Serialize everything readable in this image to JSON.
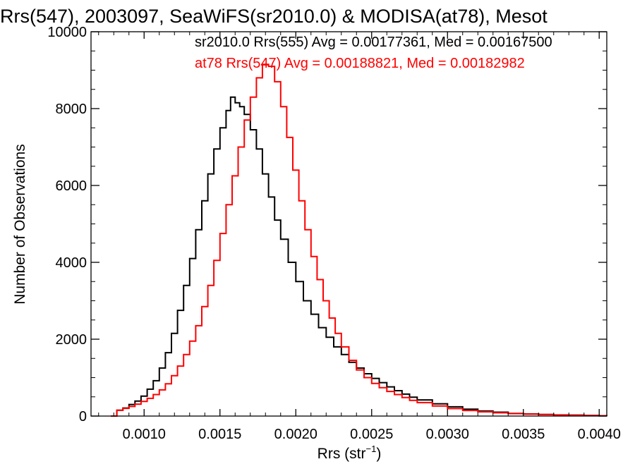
{
  "chart_data": {
    "type": "line",
    "style": "step-histogram",
    "title": "Rrs(547), 2003097, SeaWiFS(sr2010.0) & MODISA(at78), Mesot",
    "xlabel_main": "Rrs (str",
    "xlabel_sup": "−1",
    "xlabel_close": ")",
    "ylabel": "Number of Observations",
    "xlim": [
      0.00065,
      0.00405
    ],
    "ylim": [
      0,
      10000
    ],
    "x_ticks": [
      0.001,
      0.0015,
      0.002,
      0.0025,
      0.003,
      0.0035,
      0.004
    ],
    "x_tick_labels": [
      "0.0010",
      "0.0015",
      "0.0020",
      "0.0025",
      "0.0030",
      "0.0035",
      "0.0040"
    ],
    "y_ticks": [
      0,
      2000,
      4000,
      6000,
      8000,
      10000
    ],
    "y_tick_labels": [
      "0",
      "2000",
      "4000",
      "6000",
      "8000",
      "10000"
    ],
    "annotations": [
      {
        "text": "sr2010.0 Rrs(555) Avg = 0.00177361, Med = 0.00167500",
        "color": "#000000"
      },
      {
        "text": "at78 Rrs(547) Avg = 0.00188821, Med = 0.00182982",
        "color": "#ff0000"
      }
    ],
    "series": [
      {
        "color": "#000000",
        "points": [
          [
            0.00078,
            0
          ],
          [
            0.00082,
            150
          ],
          [
            0.00086,
            210
          ],
          [
            0.0009,
            300
          ],
          [
            0.00094,
            390
          ],
          [
            0.00098,
            520
          ],
          [
            0.00102,
            700
          ],
          [
            0.00106,
            920
          ],
          [
            0.0011,
            1250
          ],
          [
            0.00114,
            1650
          ],
          [
            0.00118,
            2150
          ],
          [
            0.00122,
            2750
          ],
          [
            0.00126,
            3400
          ],
          [
            0.0013,
            4100
          ],
          [
            0.00134,
            4850
          ],
          [
            0.00138,
            5600
          ],
          [
            0.00142,
            6300
          ],
          [
            0.00146,
            6950
          ],
          [
            0.0015,
            7500
          ],
          [
            0.00154,
            7950
          ],
          [
            0.00157,
            8300
          ],
          [
            0.0016,
            8150
          ],
          [
            0.00163,
            8050
          ],
          [
            0.00166,
            7850
          ],
          [
            0.0017,
            7450
          ],
          [
            0.00174,
            6950
          ],
          [
            0.00178,
            6300
          ],
          [
            0.00182,
            5700
          ],
          [
            0.00186,
            5100
          ],
          [
            0.0019,
            4600
          ],
          [
            0.00195,
            4000
          ],
          [
            0.002,
            3500
          ],
          [
            0.00205,
            3000
          ],
          [
            0.0021,
            2650
          ],
          [
            0.00215,
            2300
          ],
          [
            0.0022,
            2050
          ],
          [
            0.00225,
            1800
          ],
          [
            0.0023,
            1600
          ],
          [
            0.00235,
            1400
          ],
          [
            0.0024,
            1250
          ],
          [
            0.00245,
            1100
          ],
          [
            0.0025,
            980
          ],
          [
            0.00255,
            870
          ],
          [
            0.0026,
            760
          ],
          [
            0.00265,
            660
          ],
          [
            0.0027,
            570
          ],
          [
            0.00275,
            490
          ],
          [
            0.0028,
            420
          ],
          [
            0.0029,
            320
          ],
          [
            0.003,
            240
          ],
          [
            0.0031,
            180
          ],
          [
            0.0032,
            130
          ],
          [
            0.0033,
            100
          ],
          [
            0.0034,
            70
          ],
          [
            0.0035,
            55
          ],
          [
            0.0036,
            40
          ],
          [
            0.0037,
            30
          ],
          [
            0.0038,
            25
          ],
          [
            0.0039,
            18
          ],
          [
            0.004,
            10
          ],
          [
            0.00405,
            5
          ]
        ]
      },
      {
        "color": "#ff0000",
        "points": [
          [
            0.00078,
            0
          ],
          [
            0.00082,
            150
          ],
          [
            0.00086,
            200
          ],
          [
            0.0009,
            250
          ],
          [
            0.00094,
            310
          ],
          [
            0.00098,
            380
          ],
          [
            0.00102,
            460
          ],
          [
            0.00106,
            560
          ],
          [
            0.0011,
            680
          ],
          [
            0.00114,
            840
          ],
          [
            0.00118,
            1050
          ],
          [
            0.00122,
            1300
          ],
          [
            0.00126,
            1600
          ],
          [
            0.0013,
            1950
          ],
          [
            0.00134,
            2350
          ],
          [
            0.00138,
            2850
          ],
          [
            0.00142,
            3400
          ],
          [
            0.00146,
            4050
          ],
          [
            0.0015,
            4750
          ],
          [
            0.00154,
            5500
          ],
          [
            0.00158,
            6250
          ],
          [
            0.00162,
            7000
          ],
          [
            0.00166,
            7700
          ],
          [
            0.0017,
            8300
          ],
          [
            0.00174,
            8800
          ],
          [
            0.00178,
            9150
          ],
          [
            0.00182,
            9100
          ],
          [
            0.00186,
            8700
          ],
          [
            0.0019,
            8050
          ],
          [
            0.00194,
            7250
          ],
          [
            0.00198,
            6400
          ],
          [
            0.00202,
            5600
          ],
          [
            0.00206,
            4850
          ],
          [
            0.0021,
            4150
          ],
          [
            0.00214,
            3550
          ],
          [
            0.00218,
            3000
          ],
          [
            0.00222,
            2550
          ],
          [
            0.00226,
            2150
          ],
          [
            0.0023,
            1800
          ],
          [
            0.00235,
            1450
          ],
          [
            0.0024,
            1200
          ],
          [
            0.00245,
            1000
          ],
          [
            0.0025,
            850
          ],
          [
            0.00255,
            740
          ],
          [
            0.0026,
            640
          ],
          [
            0.00265,
            560
          ],
          [
            0.0027,
            480
          ],
          [
            0.00275,
            410
          ],
          [
            0.0028,
            350
          ],
          [
            0.0029,
            260
          ],
          [
            0.003,
            195
          ],
          [
            0.0031,
            145
          ],
          [
            0.0032,
            110
          ],
          [
            0.0033,
            85
          ],
          [
            0.0034,
            65
          ],
          [
            0.0035,
            50
          ],
          [
            0.0036,
            38
          ],
          [
            0.0037,
            28
          ],
          [
            0.0038,
            20
          ],
          [
            0.0039,
            14
          ],
          [
            0.004,
            8
          ],
          [
            0.00405,
            5
          ]
        ]
      }
    ]
  }
}
